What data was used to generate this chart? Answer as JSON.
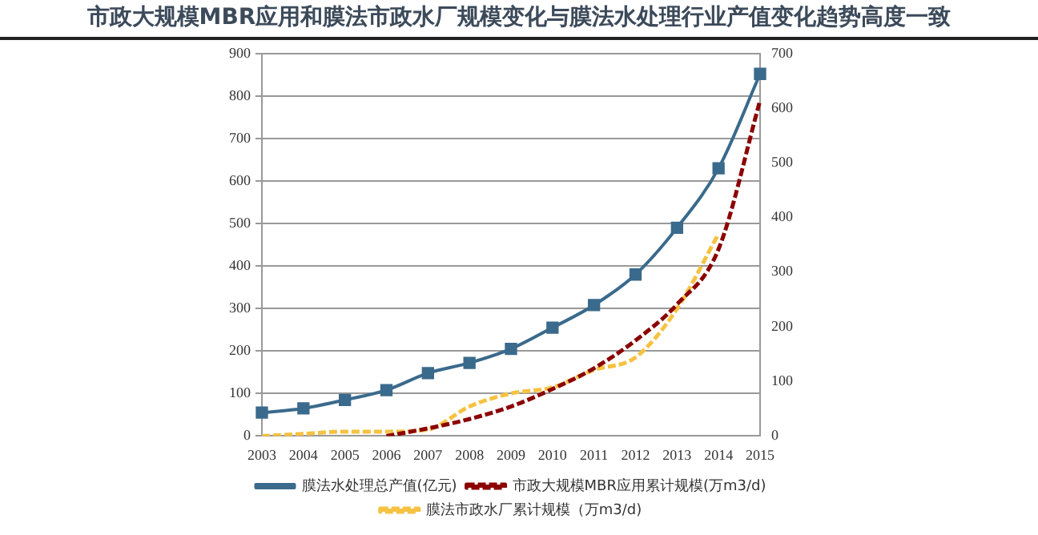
{
  "chart_data": {
    "type": "line",
    "title": "市政大规模MBR应用和膜法市政水厂规模变化与膜法水处理行业产值变化趋势高度一致",
    "categories": [
      "2003",
      "2004",
      "2005",
      "2006",
      "2007",
      "2008",
      "2009",
      "2010",
      "2011",
      "2012",
      "2013",
      "2014",
      "2015"
    ],
    "series": [
      {
        "name": "膜法水处理总产值(亿元)",
        "color": "#3a6a8c",
        "marker": "square",
        "line_style": "solid",
        "values": [
          55,
          65,
          85,
          108,
          148,
          172,
          205,
          255,
          308,
          380,
          490,
          630,
          852
        ]
      },
      {
        "name": "市政大规模MBR应用累计规模(万m3/d)",
        "color": "#8b0000",
        "marker": "none",
        "line_style": "dashed",
        "axis": "y2",
        "values": [
          null,
          null,
          null,
          0,
          14,
          31,
          54,
          86,
          124,
          175,
          241,
          342,
          614
        ]
      },
      {
        "name": "膜法市政水厂累计规模（万m3/d)",
        "color": "#f5c242",
        "marker": "none",
        "line_style": "dashed",
        "axis": "y2",
        "values": [
          0,
          4,
          8,
          8,
          12,
          54,
          78,
          89,
          121,
          144,
          233,
          370,
          null
        ]
      }
    ],
    "ylim": [
      0,
      900
    ],
    "yticks": [
      0,
      100,
      200,
      300,
      400,
      500,
      600,
      700,
      800,
      900
    ],
    "y2lim": [
      0,
      700
    ],
    "y2ticks": [
      0,
      100,
      200,
      300,
      400,
      500,
      600,
      700
    ],
    "grid": "y",
    "legend": "bottom"
  }
}
